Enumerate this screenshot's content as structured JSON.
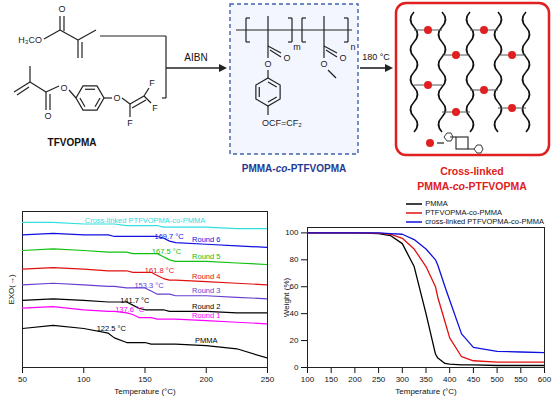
{
  "scheme": {
    "monomer1": {
      "labels": [
        "O",
        "H₃CO"
      ]
    },
    "monomer2": {
      "name": "TFVOPMA",
      "labels": [
        "O",
        "O",
        "O",
        "F",
        "F",
        "F"
      ]
    },
    "initiator": "AIBN",
    "polymer": {
      "name": "PMMA-co-PTFVOPMA",
      "repeat_units": [
        "m",
        "n"
      ],
      "labels": [
        "O",
        "O",
        "O",
        "O",
        "OCF=CF₂"
      ]
    },
    "condition": "180 °C",
    "product": {
      "name": [
        "Cross-linked",
        "PMMA-co-PTFVOPMA"
      ]
    }
  },
  "chart_data": [
    {
      "type": "line",
      "xlabel": "Temperature (°C)",
      "ylabel": "EXO(→)",
      "x": [
        50,
        75,
        100,
        120,
        125,
        135,
        140,
        145,
        150,
        155,
        160,
        165,
        170,
        175,
        200,
        225,
        250
      ],
      "xlim": [
        50,
        250
      ],
      "xticks": [
        50,
        100,
        150,
        200,
        250
      ],
      "ylim": [
        0,
        10
      ],
      "yticks": [],
      "tick_labels": "x",
      "series": [
        {
          "name": "PMMA",
          "color": "#000000",
          "tg": 122.5,
          "tg_label": "122.5 °C",
          "values": [
            2.5,
            2.7,
            2.5,
            2.2,
            1.9,
            1.6,
            1.6,
            1.6,
            1.6,
            1.5,
            1.5,
            1.5,
            1.5,
            1.5,
            1.4,
            1.2,
            0.6
          ]
        },
        {
          "name": "Round 1",
          "color": "#ff00ff",
          "tg": 137.6,
          "tg_label": "137.6 °C",
          "values": [
            3.8,
            3.9,
            3.7,
            3.6,
            3.6,
            3.5,
            3.4,
            3.2,
            3.2,
            3.2,
            3.1,
            3.1,
            3.1,
            3.1,
            3.0,
            2.9,
            2.8
          ]
        },
        {
          "name": "Round 2",
          "color": "#000000",
          "tg": 141.7,
          "tg_label": "141.7 °C",
          "values": [
            4.3,
            4.4,
            4.3,
            4.2,
            4.2,
            4.2,
            4.0,
            3.8,
            3.7,
            3.7,
            3.7,
            3.7,
            3.6,
            3.6,
            3.6,
            3.5,
            3.5
          ]
        },
        {
          "name": "Round 3",
          "color": "#6a3fd0",
          "tg": 153.3,
          "tg_label": "153.3 °C",
          "values": [
            5.3,
            5.4,
            5.3,
            5.2,
            5.2,
            5.1,
            5.1,
            5.1,
            5.1,
            4.9,
            4.7,
            4.7,
            4.7,
            4.6,
            4.6,
            4.5,
            4.4
          ]
        },
        {
          "name": "Round 4",
          "color": "#e01010",
          "tg": 161.8,
          "tg_label": "161.8 °C",
          "values": [
            6.3,
            6.4,
            6.3,
            6.2,
            6.2,
            6.2,
            6.1,
            6.1,
            6.1,
            6.1,
            5.9,
            5.7,
            5.6,
            5.6,
            5.5,
            5.4,
            5.3
          ]
        },
        {
          "name": "Round 5",
          "color": "#10c010",
          "tg": 167.5,
          "tg_label": "167.5 °C",
          "values": [
            7.5,
            7.6,
            7.5,
            7.4,
            7.4,
            7.4,
            7.3,
            7.3,
            7.3,
            7.3,
            7.3,
            7.1,
            6.9,
            6.8,
            6.8,
            6.7,
            6.6
          ]
        },
        {
          "name": "Round 6",
          "color": "#1010e0",
          "tg": 169.7,
          "tg_label": "169.7 °C",
          "values": [
            8.5,
            8.6,
            8.5,
            8.5,
            8.4,
            8.4,
            8.4,
            8.4,
            8.4,
            8.4,
            8.4,
            8.3,
            8.1,
            8.0,
            7.9,
            7.8,
            7.7
          ]
        },
        {
          "name": "Cross-linked PTFVOPMA-co-PMMA",
          "color": "#33dede",
          "values": [
            9.3,
            9.3,
            9.2,
            9.2,
            9.2,
            9.1,
            9.1,
            9.1,
            9.1,
            9.1,
            9.1,
            9.0,
            9.0,
            9.0,
            9.0,
            8.9,
            8.9
          ]
        }
      ]
    },
    {
      "type": "line",
      "xlabel": "Temperature (°C)",
      "ylabel": "Weight (%)",
      "x": [
        100,
        150,
        200,
        250,
        275,
        300,
        325,
        350,
        370,
        375,
        390,
        400,
        425,
        450,
        500,
        550,
        600
      ],
      "xlim": [
        100,
        600
      ],
      "xticks": [
        100,
        150,
        200,
        250,
        300,
        350,
        400,
        450,
        500,
        550,
        600
      ],
      "ylim": [
        0,
        104
      ],
      "yticks": [
        0,
        20,
        40,
        60,
        80,
        100
      ],
      "legend": "top-right",
      "series": [
        {
          "name": "PMMA",
          "color": "#000000",
          "values": [
            100,
            100,
            100,
            99.5,
            98,
            92,
            75,
            40,
            10,
            7,
            3,
            2.5,
            2,
            2,
            1.5,
            1.5,
            1.5
          ]
        },
        {
          "name": "PTFVOPMA-co-PMMA",
          "color": "#e01010",
          "values": [
            100,
            100,
            100,
            99.8,
            99,
            96,
            88,
            75,
            60,
            52,
            34,
            22,
            8,
            5,
            4,
            4,
            4
          ]
        },
        {
          "name": "cross-linked PTFVOPMA-co-PMMA",
          "color": "#1010e0",
          "values": [
            100,
            100,
            100,
            100,
            99.5,
            99,
            95,
            88,
            80,
            76,
            60,
            50,
            25,
            15,
            12,
            11.5,
            11
          ]
        }
      ]
    }
  ]
}
